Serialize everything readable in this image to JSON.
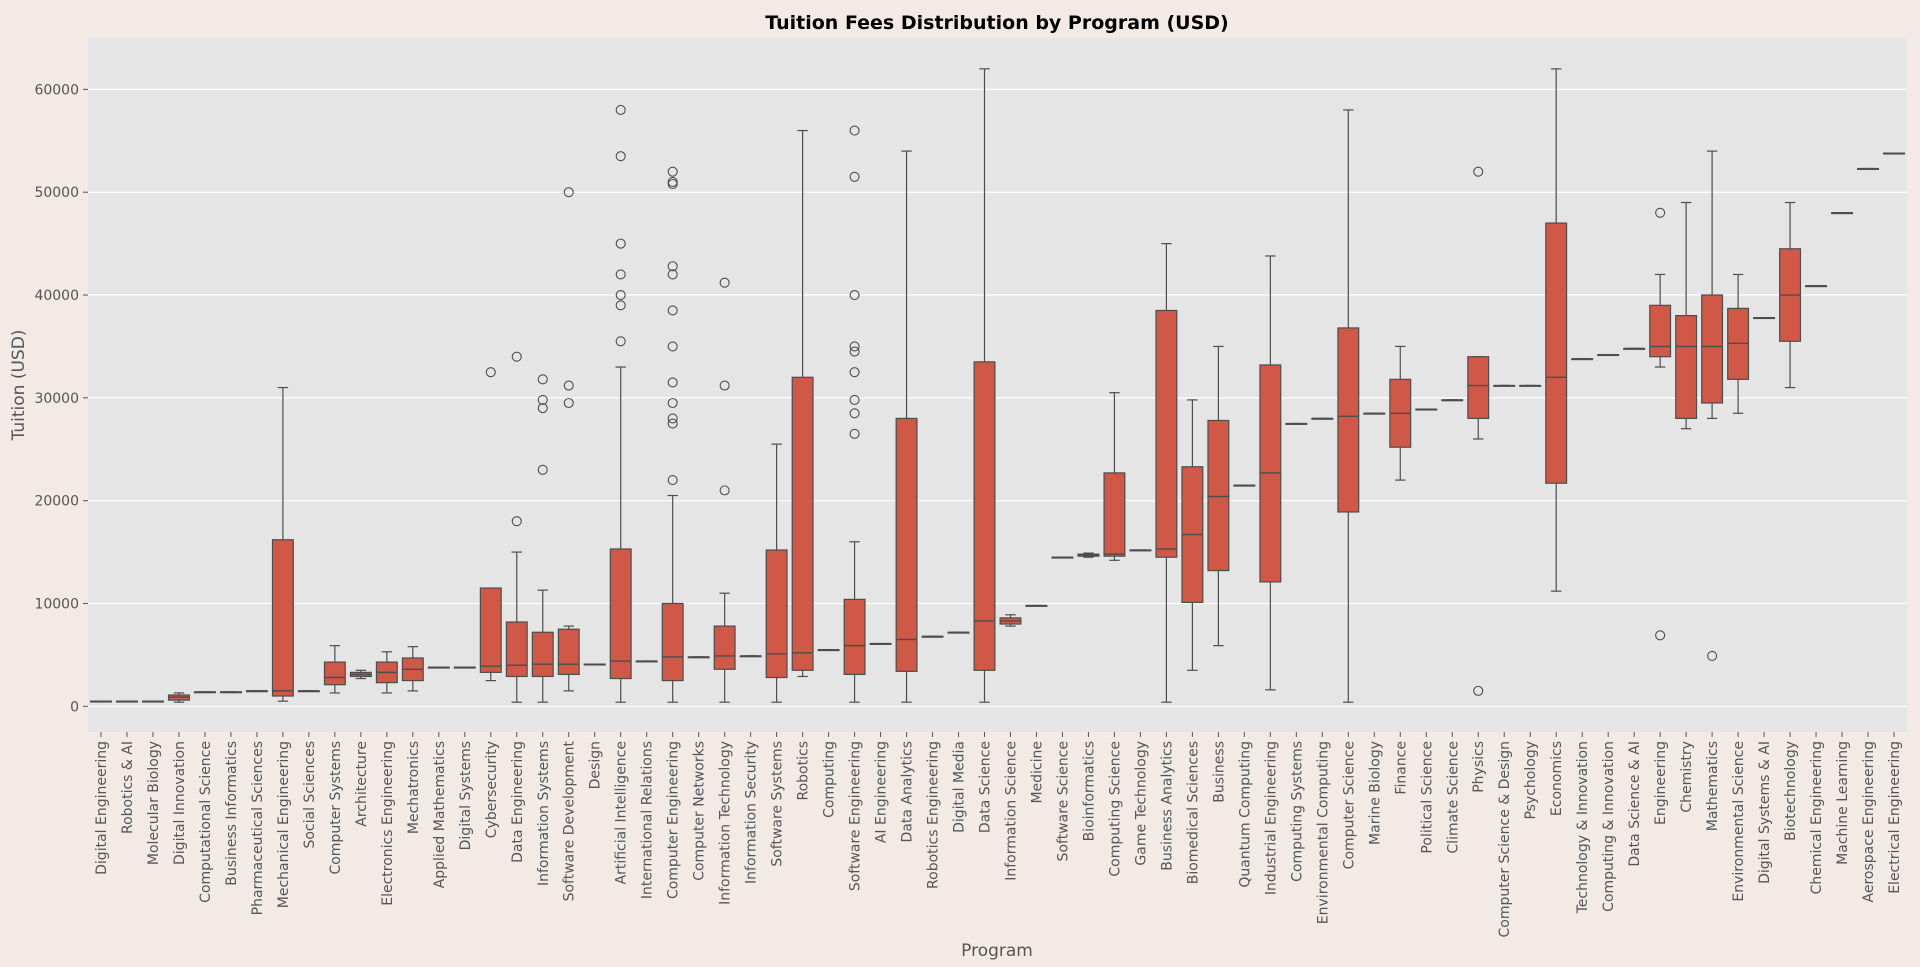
{
  "chart_data": {
    "type": "box",
    "title": "Tuition Fees Distribution by Program (USD)",
    "xlabel": "Program",
    "ylabel": "Tuition (USD)",
    "ylim": [
      -2500,
      65000
    ],
    "yticks": [
      0,
      10000,
      20000,
      30000,
      40000,
      50000,
      60000
    ],
    "grid": true,
    "colors": {
      "box": "#cf5846",
      "line": "#4d4d4d",
      "plot_bg": "#e5e5e5",
      "page_bg": "#f3e9e5"
    },
    "boxes": [
      {
        "category": "Digital Engineering",
        "q1": 500,
        "median": 500,
        "q3": 500,
        "wl": 500,
        "wh": 500,
        "fliers": []
      },
      {
        "category": "Robotics & AI",
        "q1": 500,
        "median": 500,
        "q3": 500,
        "wl": 500,
        "wh": 500,
        "fliers": []
      },
      {
        "category": "Molecular Biology",
        "q1": 500,
        "median": 500,
        "q3": 500,
        "wl": 500,
        "wh": 500,
        "fliers": []
      },
      {
        "category": "Digital Innovation",
        "q1": 600,
        "median": 900,
        "q3": 1100,
        "wl": 400,
        "wh": 1300,
        "fliers": []
      },
      {
        "category": "Computational Science",
        "q1": 1400,
        "median": 1400,
        "q3": 1400,
        "wl": 1400,
        "wh": 1400,
        "fliers": []
      },
      {
        "category": "Business Informatics",
        "q1": 1400,
        "median": 1400,
        "q3": 1400,
        "wl": 1400,
        "wh": 1400,
        "fliers": []
      },
      {
        "category": "Pharmaceutical Sciences",
        "q1": 1500,
        "median": 1500,
        "q3": 1500,
        "wl": 1500,
        "wh": 1500,
        "fliers": []
      },
      {
        "category": "Mechanical Engineering",
        "q1": 1000,
        "median": 1500,
        "q3": 16200,
        "wl": 500,
        "wh": 31000,
        "fliers": []
      },
      {
        "category": "Social Sciences",
        "q1": 1500,
        "median": 1500,
        "q3": 1500,
        "wl": 1500,
        "wh": 1500,
        "fliers": []
      },
      {
        "category": "Computer Systems",
        "q1": 2100,
        "median": 2800,
        "q3": 4300,
        "wl": 1300,
        "wh": 5900,
        "fliers": []
      },
      {
        "category": "Architecture",
        "q1": 2900,
        "median": 3100,
        "q3": 3300,
        "wl": 2700,
        "wh": 3500,
        "fliers": []
      },
      {
        "category": "Electronics Engineering",
        "q1": 2300,
        "median": 3300,
        "q3": 4300,
        "wl": 1300,
        "wh": 5300,
        "fliers": []
      },
      {
        "category": "Mechatronics",
        "q1": 2500,
        "median": 3600,
        "q3": 4700,
        "wl": 1500,
        "wh": 5800,
        "fliers": []
      },
      {
        "category": "Applied Mathematics",
        "q1": 3800,
        "median": 3800,
        "q3": 3800,
        "wl": 3800,
        "wh": 3800,
        "fliers": []
      },
      {
        "category": "Digital Systems",
        "q1": 3800,
        "median": 3800,
        "q3": 3800,
        "wl": 3800,
        "wh": 3800,
        "fliers": []
      },
      {
        "category": "Cybersecurity",
        "q1": 3300,
        "median": 3900,
        "q3": 11500,
        "wl": 2500,
        "wh": 11500,
        "fliers": [
          32500
        ]
      },
      {
        "category": "Data Engineering",
        "q1": 2900,
        "median": 4000,
        "q3": 8200,
        "wl": 400,
        "wh": 15000,
        "fliers": [
          18000,
          34000
        ]
      },
      {
        "category": "Information Systems",
        "q1": 2900,
        "median": 4100,
        "q3": 7200,
        "wl": 400,
        "wh": 11300,
        "fliers": [
          23000,
          29000,
          29800,
          31800
        ]
      },
      {
        "category": "Software Development",
        "q1": 3100,
        "median": 4100,
        "q3": 7500,
        "wl": 1500,
        "wh": 7800,
        "fliers": [
          29500,
          31200,
          50000
        ]
      },
      {
        "category": "Design",
        "q1": 4100,
        "median": 4100,
        "q3": 4100,
        "wl": 4100,
        "wh": 4100,
        "fliers": []
      },
      {
        "category": "Artificial Intelligence",
        "q1": 2700,
        "median": 4400,
        "q3": 15300,
        "wl": 400,
        "wh": 33000,
        "fliers": [
          35500,
          39000,
          40000,
          42000,
          45000,
          53500,
          58000
        ]
      },
      {
        "category": "International Relations",
        "q1": 4400,
        "median": 4400,
        "q3": 4400,
        "wl": 4400,
        "wh": 4400,
        "fliers": []
      },
      {
        "category": "Computer Engineering",
        "q1": 2500,
        "median": 4800,
        "q3": 10000,
        "wl": 400,
        "wh": 20500,
        "fliers": [
          22000,
          27500,
          28000,
          29500,
          31500,
          35000,
          38500,
          42000,
          42800,
          50800,
          51000,
          52000
        ]
      },
      {
        "category": "Computer Networks",
        "q1": 4800,
        "median": 4800,
        "q3": 4800,
        "wl": 4800,
        "wh": 4800,
        "fliers": []
      },
      {
        "category": "Information Technology",
        "q1": 3600,
        "median": 4900,
        "q3": 7800,
        "wl": 400,
        "wh": 11000,
        "fliers": [
          21000,
          31200,
          41200
        ]
      },
      {
        "category": "Information Security",
        "q1": 4900,
        "median": 4900,
        "q3": 4900,
        "wl": 4900,
        "wh": 4900,
        "fliers": []
      },
      {
        "category": "Software Systems",
        "q1": 2800,
        "median": 5100,
        "q3": 15200,
        "wl": 400,
        "wh": 25500,
        "fliers": []
      },
      {
        "category": "Robotics",
        "q1": 3500,
        "median": 5200,
        "q3": 32000,
        "wl": 2900,
        "wh": 56000,
        "fliers": []
      },
      {
        "category": "Computing",
        "q1": 5500,
        "median": 5500,
        "q3": 5500,
        "wl": 5500,
        "wh": 5500,
        "fliers": []
      },
      {
        "category": "Software Engineering",
        "q1": 3100,
        "median": 5900,
        "q3": 10400,
        "wl": 400,
        "wh": 16000,
        "fliers": [
          26500,
          28500,
          29800,
          32500,
          34500,
          35000,
          40000,
          51500,
          56000
        ]
      },
      {
        "category": "AI Engineering",
        "q1": 6100,
        "median": 6100,
        "q3": 6100,
        "wl": 6100,
        "wh": 6100,
        "fliers": []
      },
      {
        "category": "Data Analytics",
        "q1": 3400,
        "median": 6500,
        "q3": 28000,
        "wl": 400,
        "wh": 54000,
        "fliers": []
      },
      {
        "category": "Robotics Engineering",
        "q1": 6800,
        "median": 6800,
        "q3": 6800,
        "wl": 6800,
        "wh": 6800,
        "fliers": []
      },
      {
        "category": "Digital Media",
        "q1": 7200,
        "median": 7200,
        "q3": 7200,
        "wl": 7200,
        "wh": 7200,
        "fliers": []
      },
      {
        "category": "Data Science",
        "q1": 3500,
        "median": 8300,
        "q3": 33500,
        "wl": 400,
        "wh": 62000,
        "fliers": []
      },
      {
        "category": "Information Science",
        "q1": 8000,
        "median": 8300,
        "q3": 8600,
        "wl": 7800,
        "wh": 8900,
        "fliers": []
      },
      {
        "category": "Medicine",
        "q1": 9800,
        "median": 9800,
        "q3": 9800,
        "wl": 9800,
        "wh": 9800,
        "fliers": []
      },
      {
        "category": "Software Science",
        "q1": 14500,
        "median": 14500,
        "q3": 14500,
        "wl": 14500,
        "wh": 14500,
        "fliers": []
      },
      {
        "category": "Bioinformatics",
        "q1": 14600,
        "median": 14700,
        "q3": 14800,
        "wl": 14500,
        "wh": 14900,
        "fliers": []
      },
      {
        "category": "Computing Science",
        "q1": 14600,
        "median": 14800,
        "q3": 22700,
        "wl": 14200,
        "wh": 30500,
        "fliers": []
      },
      {
        "category": "Game Technology",
        "q1": 15200,
        "median": 15200,
        "q3": 15200,
        "wl": 15200,
        "wh": 15200,
        "fliers": []
      },
      {
        "category": "Business Analytics",
        "q1": 14500,
        "median": 15300,
        "q3": 38500,
        "wl": 400,
        "wh": 45000,
        "fliers": []
      },
      {
        "category": "Biomedical Sciences",
        "q1": 10100,
        "median": 16700,
        "q3": 23300,
        "wl": 3500,
        "wh": 29800,
        "fliers": []
      },
      {
        "category": "Business",
        "q1": 13200,
        "median": 20400,
        "q3": 27800,
        "wl": 5900,
        "wh": 35000,
        "fliers": []
      },
      {
        "category": "Quantum Computing",
        "q1": 21500,
        "median": 21500,
        "q3": 21500,
        "wl": 21500,
        "wh": 21500,
        "fliers": []
      },
      {
        "category": "Industrial Engineering",
        "q1": 12100,
        "median": 22700,
        "q3": 33200,
        "wl": 1600,
        "wh": 43800,
        "fliers": []
      },
      {
        "category": "Computing Systems",
        "q1": 27500,
        "median": 27500,
        "q3": 27500,
        "wl": 27500,
        "wh": 27500,
        "fliers": []
      },
      {
        "category": "Environmental Computing",
        "q1": 28000,
        "median": 28000,
        "q3": 28000,
        "wl": 28000,
        "wh": 28000,
        "fliers": []
      },
      {
        "category": "Computer Science",
        "q1": 18900,
        "median": 28200,
        "q3": 36800,
        "wl": 400,
        "wh": 58000,
        "fliers": []
      },
      {
        "category": "Marine Biology",
        "q1": 28500,
        "median": 28500,
        "q3": 28500,
        "wl": 28500,
        "wh": 28500,
        "fliers": []
      },
      {
        "category": "Finance",
        "q1": 25200,
        "median": 28500,
        "q3": 31800,
        "wl": 22000,
        "wh": 35000,
        "fliers": []
      },
      {
        "category": "Political Science",
        "q1": 28900,
        "median": 28900,
        "q3": 28900,
        "wl": 28900,
        "wh": 28900,
        "fliers": []
      },
      {
        "category": "Climate Science",
        "q1": 29800,
        "median": 29800,
        "q3": 29800,
        "wl": 29800,
        "wh": 29800,
        "fliers": []
      },
      {
        "category": "Physics",
        "q1": 28000,
        "median": 31200,
        "q3": 34000,
        "wl": 26000,
        "wh": 34000,
        "fliers": [
          1500,
          52000
        ]
      },
      {
        "category": "Computer Science & Design",
        "q1": 31200,
        "median": 31200,
        "q3": 31200,
        "wl": 31200,
        "wh": 31200,
        "fliers": []
      },
      {
        "category": "Psychology",
        "q1": 31200,
        "median": 31200,
        "q3": 31200,
        "wl": 31200,
        "wh": 31200,
        "fliers": []
      },
      {
        "category": "Economics",
        "q1": 21700,
        "median": 32000,
        "q3": 47000,
        "wl": 11200,
        "wh": 62000,
        "fliers": []
      },
      {
        "category": "Technology & Innovation",
        "q1": 33800,
        "median": 33800,
        "q3": 33800,
        "wl": 33800,
        "wh": 33800,
        "fliers": []
      },
      {
        "category": "Computing & Innovation",
        "q1": 34200,
        "median": 34200,
        "q3": 34200,
        "wl": 34200,
        "wh": 34200,
        "fliers": []
      },
      {
        "category": "Data Science & AI",
        "q1": 34800,
        "median": 34800,
        "q3": 34800,
        "wl": 34800,
        "wh": 34800,
        "fliers": []
      },
      {
        "category": "Engineering",
        "q1": 34000,
        "median": 35000,
        "q3": 39000,
        "wl": 33000,
        "wh": 42000,
        "fliers": [
          6900,
          48000
        ]
      },
      {
        "category": "Chemistry",
        "q1": 28000,
        "median": 35000,
        "q3": 38000,
        "wl": 27000,
        "wh": 49000,
        "fliers": []
      },
      {
        "category": "Mathematics",
        "q1": 29500,
        "median": 35000,
        "q3": 40000,
        "wl": 28000,
        "wh": 54000,
        "fliers": [
          4900
        ]
      },
      {
        "category": "Environmental Science",
        "q1": 31800,
        "median": 35300,
        "q3": 38700,
        "wl": 28500,
        "wh": 42000,
        "fliers": []
      },
      {
        "category": "Digital Systems & AI",
        "q1": 37800,
        "median": 37800,
        "q3": 37800,
        "wl": 37800,
        "wh": 37800,
        "fliers": []
      },
      {
        "category": "Biotechnology",
        "q1": 35500,
        "median": 40000,
        "q3": 44500,
        "wl": 31000,
        "wh": 49000,
        "fliers": []
      },
      {
        "category": "Chemical Engineering",
        "q1": 40900,
        "median": 40900,
        "q3": 40900,
        "wl": 40900,
        "wh": 40900,
        "fliers": []
      },
      {
        "category": "Machine Learning",
        "q1": 48000,
        "median": 48000,
        "q3": 48000,
        "wl": 48000,
        "wh": 48000,
        "fliers": []
      },
      {
        "category": "Aerospace Engineering",
        "q1": 52300,
        "median": 52300,
        "q3": 52300,
        "wl": 52300,
        "wh": 52300,
        "fliers": []
      },
      {
        "category": "Electrical Engineering",
        "q1": 53800,
        "median": 53800,
        "q3": 53800,
        "wl": 53800,
        "wh": 53800,
        "fliers": []
      }
    ]
  }
}
